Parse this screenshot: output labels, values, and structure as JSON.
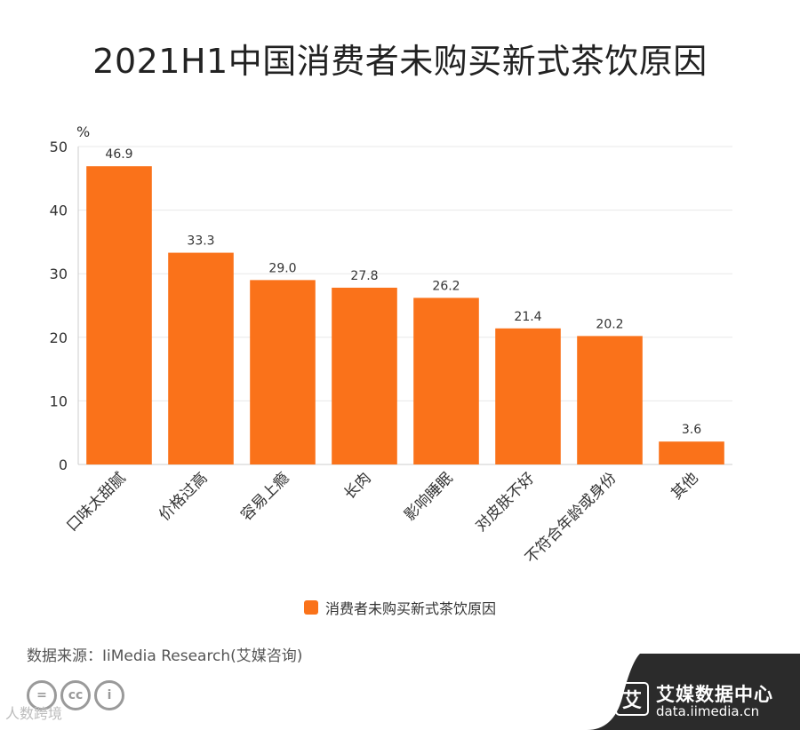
{
  "title": "2021H1中国消费者未购买新式茶饮原因",
  "chart_data": {
    "type": "bar",
    "title": "2021H1中国消费者未购买新式茶饮原因",
    "ylabel": "%",
    "ylim": [
      0,
      50
    ],
    "yticks": [
      0,
      10,
      20,
      30,
      40,
      50
    ],
    "categories": [
      "口味太甜腻",
      "价格过高",
      "容易上瘾",
      "长肉",
      "影响睡眠",
      "对皮肤不好",
      "不符合年龄或身份",
      "其他"
    ],
    "series": [
      {
        "name": "消费者未购买新式茶饮原因",
        "values": [
          46.9,
          33.3,
          29.0,
          27.8,
          26.2,
          21.4,
          20.2,
          3.6
        ],
        "labels": [
          "46.9",
          "33.3",
          "29.0",
          "27.8",
          "26.2",
          "21.4",
          "20.2",
          "3.6"
        ]
      }
    ],
    "grid": true,
    "legend": "bottom"
  },
  "colors": {
    "bar": "#fa721a",
    "grid": "#e8e8e8",
    "axis": "#cccccc",
    "brand_band": "#2b2b2b"
  },
  "source": "数据来源：IiMedia Research(艾媒咨询)",
  "brand": {
    "logo_char": "艾",
    "name": "艾媒数据中心",
    "url": "data.iimedia.cn"
  },
  "license_icons": [
    "equal-icon",
    "cc-icon",
    "person-icon"
  ],
  "license_glyphs": [
    "=",
    "cc",
    "i"
  ],
  "watermark": "人数跨境"
}
